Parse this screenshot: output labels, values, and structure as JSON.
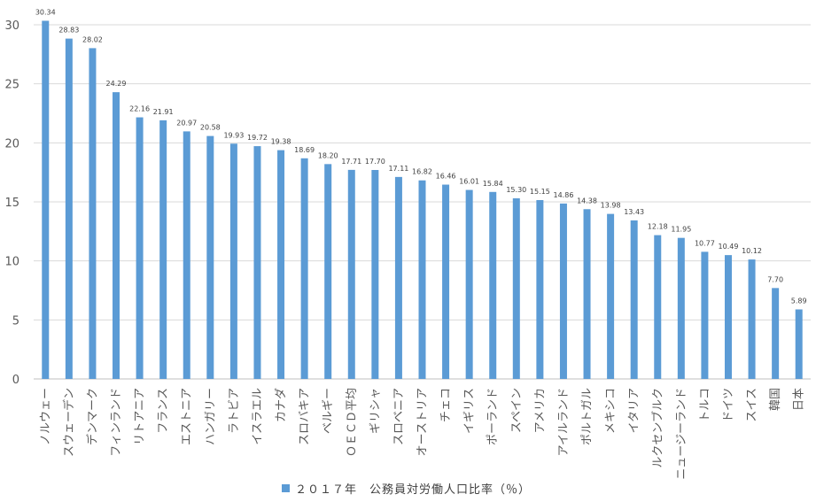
{
  "chart_data": {
    "type": "bar",
    "title": "",
    "xlabel": "",
    "ylabel": "",
    "ylim": [
      0,
      30
    ],
    "yticks": [
      0,
      5,
      10,
      15,
      20,
      25,
      30
    ],
    "grid": true,
    "legend_position": "bottom",
    "bar_color": "#5b9bd5",
    "categories": [
      "ノルウェー",
      "スウェーデン",
      "デンマーク",
      "フィンランド",
      "リトアニア",
      "フランス",
      "エストニア",
      "ハンガリー",
      "ラトビア",
      "イスラエル",
      "カナダ",
      "スロバキア",
      "ベルギー",
      "ＯＥＣＤ平均",
      "ギリシャ",
      "スロベニア",
      "オーストリア",
      "チェコ",
      "イギリス",
      "ポーランド",
      "スペイン",
      "アメリカ",
      "アイルランド",
      "ポルトガル",
      "メキシコ",
      "イタリア",
      "ルクセンブルク",
      "ニュージーランド",
      "トルコ",
      "ドイツ",
      "スイス",
      "韓国",
      "日本"
    ],
    "series": [
      {
        "name": "２０１７年　公務員対労働人口比率（％）",
        "values": [
          30.34,
          28.83,
          28.02,
          24.29,
          22.16,
          21.91,
          20.97,
          20.58,
          19.93,
          19.72,
          19.38,
          18.69,
          18.2,
          17.71,
          17.7,
          17.11,
          16.82,
          16.46,
          16.01,
          15.84,
          15.3,
          15.15,
          14.86,
          14.38,
          13.98,
          13.43,
          12.18,
          11.95,
          10.77,
          10.49,
          10.12,
          7.7,
          5.89
        ],
        "labels": [
          "30.34",
          "28.83",
          "28.02",
          "24.29",
          "22.16",
          "21.91",
          "20.97",
          "20.58",
          "19.93",
          "19.72",
          "19.38",
          "18.69",
          "18.20",
          "17.71",
          "17.70",
          "17.11",
          "16.82",
          "16.46",
          "16.01",
          "15.84",
          "15.30",
          "15.15",
          "14.86",
          "14.38",
          "13.98",
          "13.43",
          "12.18",
          "11.95",
          "10.77",
          "10.49",
          "10.12",
          "7.70",
          "5.89"
        ]
      }
    ]
  },
  "legend": {
    "label": "２０１７年　公務員対労働人口比率（％）"
  }
}
